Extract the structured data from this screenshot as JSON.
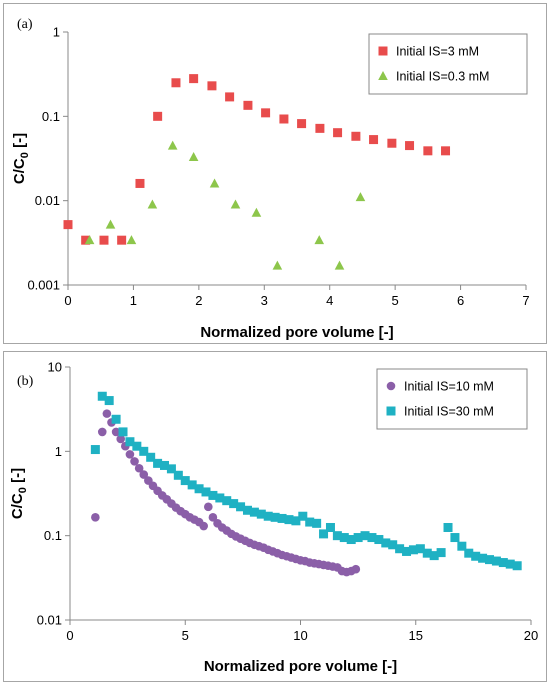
{
  "chart_data": [
    {
      "type": "scatter",
      "panel_label": "(a)",
      "xlabel": "Normalized pore volume [-]",
      "ylabel": "C/C",
      "ylabel_sub": "0",
      "ylabel_suffix": " [-]",
      "xlim": [
        0,
        7
      ],
      "ylim": [
        0.001,
        1
      ],
      "yscale": "log",
      "x_ticks": [
        "0",
        "1",
        "2",
        "3",
        "4",
        "5",
        "6",
        "7"
      ],
      "y_ticks": [
        "0.001",
        "0.01",
        "0.1",
        "1"
      ],
      "grid": false,
      "legend_position": "top-right",
      "series": [
        {
          "name": "Initial IS=3 mM",
          "marker": "square",
          "color": "#E84C4C",
          "x": [
            0,
            0.27,
            0.55,
            0.82,
            1.1,
            1.37,
            1.65,
            1.92,
            2.2,
            2.47,
            2.75,
            3.02,
            3.3,
            3.57,
            3.85,
            4.12,
            4.4,
            4.67,
            4.95,
            5.22,
            5.5,
            5.77
          ],
          "y": [
            0.0052,
            0.0034,
            0.0034,
            0.0034,
            0.016,
            0.1,
            0.25,
            0.28,
            0.23,
            0.17,
            0.135,
            0.11,
            0.093,
            0.082,
            0.072,
            0.064,
            0.058,
            0.053,
            0.048,
            0.045,
            0.039,
            0.039
          ]
        },
        {
          "name": "Initial IS=0.3 mM",
          "marker": "triangle",
          "color": "#8DC64B",
          "x": [
            0.33,
            0.65,
            0.97,
            1.29,
            1.6,
            1.92,
            2.24,
            2.56,
            2.88,
            3.2,
            3.84,
            4.15,
            4.47
          ],
          "y": [
            0.0034,
            0.0052,
            0.0034,
            0.009,
            0.045,
            0.033,
            0.016,
            0.009,
            0.0072,
            0.0017,
            0.0034,
            0.0017,
            0.011
          ]
        }
      ]
    },
    {
      "type": "scatter",
      "panel_label": "(b)",
      "xlabel": "Normalized pore volume [-]",
      "ylabel": "C/C",
      "ylabel_sub": "0",
      "ylabel_suffix": " [-]",
      "xlim": [
        0,
        20
      ],
      "ylim": [
        0.01,
        10
      ],
      "yscale": "log",
      "x_ticks": [
        "0",
        "5",
        "10",
        "15",
        "20"
      ],
      "y_ticks": [
        "0.01",
        "0.1",
        "1",
        "10"
      ],
      "grid": false,
      "legend_position": "top-right",
      "series": [
        {
          "name": "Initial IS=10 mM",
          "marker": "circle",
          "color": "#8B5FA8",
          "x": [
            1.1,
            1.4,
            1.6,
            1.8,
            2.0,
            2.2,
            2.4,
            2.6,
            2.8,
            3.0,
            3.2,
            3.4,
            3.6,
            3.8,
            4.0,
            4.2,
            4.4,
            4.6,
            4.8,
            5.0,
            5.2,
            5.4,
            5.6,
            5.8,
            6.0,
            6.2,
            6.4,
            6.6,
            6.8,
            7.0,
            7.2,
            7.4,
            7.6,
            7.8,
            8.0,
            8.2,
            8.4,
            8.6,
            8.8,
            9.0,
            9.2,
            9.4,
            9.6,
            9.8,
            10.0,
            10.2,
            10.4,
            10.6,
            10.8,
            11.0,
            11.2,
            11.4,
            11.6,
            11.8,
            12.0,
            12.2,
            12.4
          ],
          "y": [
            0.165,
            1.7,
            2.8,
            2.2,
            1.7,
            1.4,
            1.15,
            0.92,
            0.76,
            0.63,
            0.53,
            0.45,
            0.39,
            0.34,
            0.3,
            0.27,
            0.24,
            0.215,
            0.195,
            0.18,
            0.165,
            0.155,
            0.145,
            0.13,
            0.22,
            0.165,
            0.14,
            0.125,
            0.115,
            0.105,
            0.098,
            0.092,
            0.087,
            0.082,
            0.078,
            0.075,
            0.072,
            0.068,
            0.065,
            0.062,
            0.059,
            0.057,
            0.055,
            0.053,
            0.051,
            0.05,
            0.048,
            0.047,
            0.046,
            0.045,
            0.044,
            0.043,
            0.042,
            0.038,
            0.037,
            0.038,
            0.04
          ]
        },
        {
          "name": "Initial IS=30 mM",
          "marker": "square",
          "color": "#1FB1C3",
          "x": [
            1.1,
            1.4,
            1.7,
            2.0,
            2.3,
            2.6,
            2.9,
            3.2,
            3.5,
            3.8,
            4.1,
            4.4,
            4.7,
            5.0,
            5.3,
            5.6,
            5.9,
            6.2,
            6.5,
            6.8,
            7.1,
            7.4,
            7.7,
            8.0,
            8.3,
            8.6,
            8.9,
            9.2,
            9.5,
            9.8,
            10.1,
            10.4,
            10.7,
            11.0,
            11.3,
            11.6,
            11.9,
            12.2,
            12.5,
            12.8,
            13.1,
            13.4,
            13.7,
            14.0,
            14.3,
            14.6,
            14.9,
            15.2,
            15.5,
            15.8,
            16.1,
            16.4,
            16.7,
            17.0,
            17.3,
            17.6,
            17.9,
            18.2,
            18.5,
            18.8,
            19.1,
            19.4
          ],
          "y": [
            1.05,
            4.5,
            4.0,
            2.4,
            1.7,
            1.3,
            1.15,
            1.0,
            0.85,
            0.72,
            0.68,
            0.62,
            0.52,
            0.45,
            0.4,
            0.36,
            0.33,
            0.3,
            0.28,
            0.26,
            0.24,
            0.22,
            0.2,
            0.19,
            0.18,
            0.17,
            0.165,
            0.16,
            0.155,
            0.15,
            0.17,
            0.145,
            0.14,
            0.105,
            0.125,
            0.1,
            0.095,
            0.09,
            0.095,
            0.1,
            0.095,
            0.09,
            0.082,
            0.078,
            0.07,
            0.065,
            0.068,
            0.07,
            0.062,
            0.058,
            0.063,
            0.125,
            0.095,
            0.075,
            0.062,
            0.057,
            0.054,
            0.052,
            0.05,
            0.048,
            0.046,
            0.044
          ]
        }
      ]
    }
  ]
}
